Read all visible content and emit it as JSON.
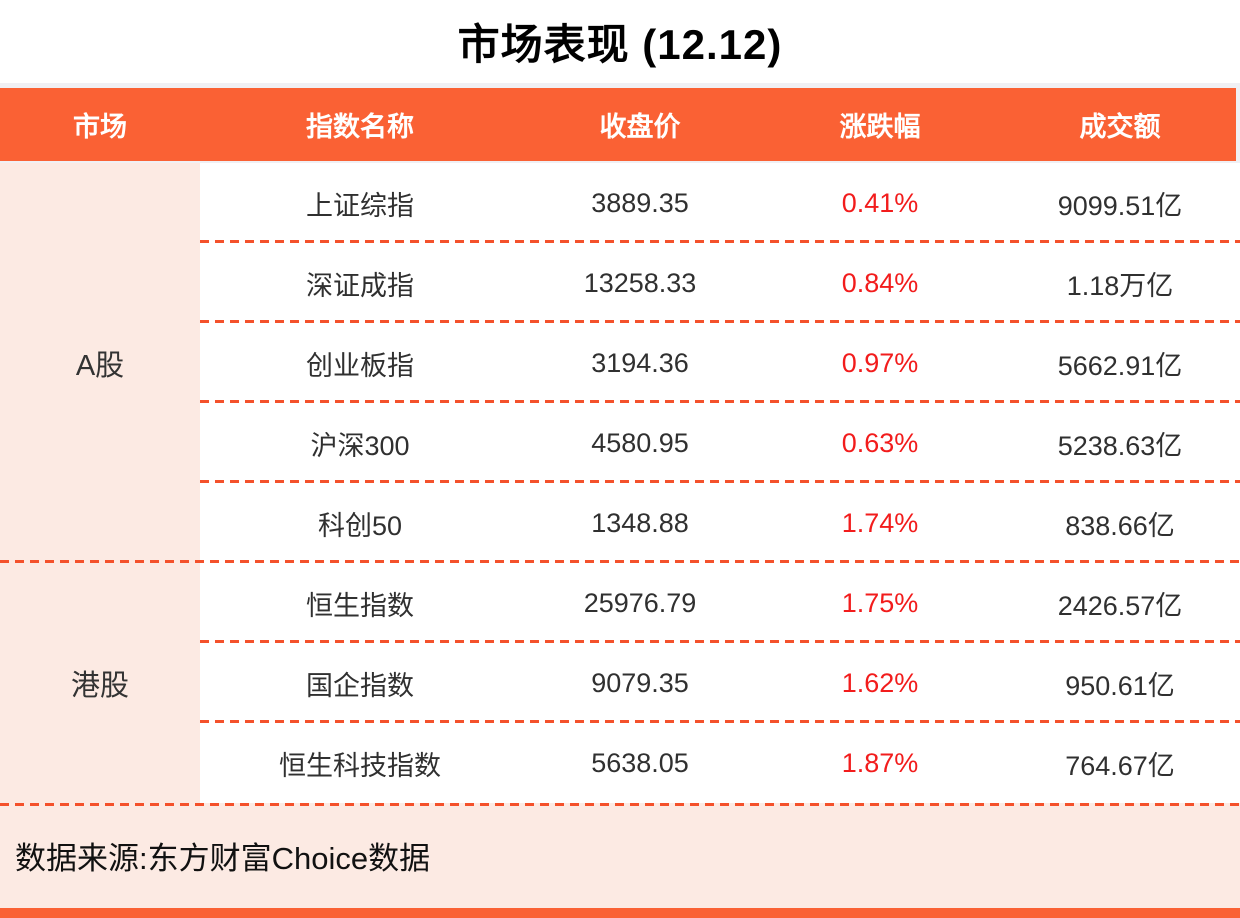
{
  "title": "市场表现 (12.12)",
  "colors": {
    "accent": "#FA6134",
    "dash": "#F4512B",
    "pink": "#FCEAE3",
    "red": "#F21C1C"
  },
  "table": {
    "columns": [
      "市场",
      "指数名称",
      "收盘价",
      "涨跌幅",
      "成交额"
    ],
    "sections": [
      {
        "label": "A股",
        "row_count": 5
      },
      {
        "label": "港股",
        "row_count": 3
      }
    ]
  },
  "chart_data": {
    "type": "table",
    "title": "市场表现 (12.12)",
    "columns": [
      "市场",
      "指数名称",
      "收盘价",
      "涨跌幅",
      "成交额"
    ],
    "rows": [
      [
        "A股",
        "上证综指",
        "3889.35",
        "0.41%",
        "9099.51亿"
      ],
      [
        "A股",
        "深证成指",
        "13258.33",
        "0.84%",
        "1.18万亿"
      ],
      [
        "A股",
        "创业板指",
        "3194.36",
        "0.97%",
        "5662.91亿"
      ],
      [
        "A股",
        "沪深300",
        "4580.95",
        "0.63%",
        "5238.63亿"
      ],
      [
        "A股",
        "科创50",
        "1348.88",
        "1.74%",
        "838.66亿"
      ],
      [
        "港股",
        "恒生指数",
        "25976.79",
        "1.75%",
        "2426.57亿"
      ],
      [
        "港股",
        "国企指数",
        "9079.35",
        "1.62%",
        "950.61亿"
      ],
      [
        "港股",
        "恒生科技指数",
        "5638.05",
        "1.87%",
        "764.67亿"
      ]
    ]
  },
  "footer": {
    "source": "数据来源:东方财富Choice数据"
  }
}
